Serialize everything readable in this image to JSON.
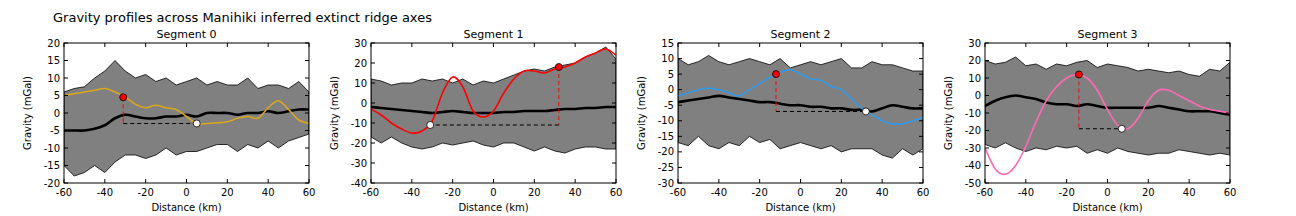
{
  "title": "Gravity profiles across Manihiki inferred extinct ridge axes",
  "chart_data": [
    {
      "type": "line",
      "title": "Segment 0",
      "x_label": "Distance (km)",
      "y_label": "Gravity (mGal)",
      "xlim": [
        -60,
        60
      ],
      "xticks": [
        -60,
        -40,
        -20,
        0,
        20,
        40,
        60
      ],
      "ylim": [
        -20,
        20
      ],
      "yticks": [
        -20,
        -15,
        -10,
        -5,
        0,
        5,
        10,
        15,
        20
      ],
      "x": [
        -60,
        -55,
        -50,
        -45,
        -40,
        -35,
        -30,
        -25,
        -20,
        -15,
        -10,
        -5,
        0,
        5,
        10,
        15,
        20,
        25,
        30,
        35,
        40,
        45,
        50,
        55,
        60
      ],
      "series": [
        {
          "type": "band",
          "color": "#808080",
          "upper": [
            6,
            7,
            7.5,
            10,
            12,
            15,
            12,
            10,
            11,
            9,
            10,
            8,
            9,
            10,
            8,
            9,
            8,
            8,
            10,
            7,
            8,
            8,
            7,
            9,
            6
          ],
          "lower": [
            -15,
            -18,
            -17,
            -15,
            -17,
            -14,
            -12,
            -12,
            -13,
            -12,
            -10,
            -12,
            -11,
            -11,
            -10,
            -9,
            -9,
            -11,
            -9,
            -10,
            -8,
            -10,
            -8,
            -7,
            -6
          ]
        },
        {
          "type": "line",
          "color": "#000000",
          "values": [
            -5,
            -5,
            -5,
            -4.5,
            -3.5,
            -1.5,
            -0.5,
            -1,
            -1.5,
            -1.5,
            -1,
            -1,
            -0.5,
            -1,
            0,
            0,
            0,
            -0.5,
            0,
            0,
            0.5,
            0,
            0.5,
            1,
            1
          ]
        },
        {
          "type": "line",
          "color": "#daa520",
          "values": [
            5,
            5.5,
            6,
            6.5,
            7,
            6,
            4.5,
            2.5,
            1.5,
            2.2,
            1.5,
            1,
            -1,
            -3,
            -3,
            -2.8,
            -2.5,
            -1.5,
            -1,
            -1.5,
            1.5,
            3.5,
            1,
            -2,
            -3
          ]
        }
      ],
      "peak": {
        "x": -31,
        "y": 4.5,
        "color": "#ff0000"
      },
      "trough": {
        "x": 5,
        "y": -3,
        "color": "#ffffff"
      }
    },
    {
      "type": "line",
      "title": "Segment 1",
      "x_label": "Distance (km)",
      "y_label": "Gravity (mGal)",
      "xlim": [
        -60,
        60
      ],
      "xticks": [
        -60,
        -40,
        -20,
        0,
        20,
        40,
        60
      ],
      "ylim": [
        -40,
        30
      ],
      "yticks": [
        -40,
        -30,
        -20,
        -10,
        0,
        10,
        20,
        30
      ],
      "x": [
        -60,
        -55,
        -50,
        -45,
        -40,
        -35,
        -30,
        -25,
        -20,
        -15,
        -10,
        -5,
        0,
        5,
        10,
        15,
        20,
        25,
        30,
        35,
        40,
        45,
        50,
        55,
        60
      ],
      "series": [
        {
          "type": "band",
          "color": "#808080",
          "upper": [
            12,
            11,
            9,
            10,
            10,
            12,
            11,
            12,
            10,
            12,
            9,
            11,
            10,
            12,
            14,
            16,
            17,
            16,
            18,
            19,
            20,
            23,
            25,
            28,
            22
          ],
          "lower": [
            -17,
            -20,
            -17,
            -20,
            -22,
            -23,
            -22,
            -20,
            -21,
            -20,
            -19,
            -21,
            -22,
            -20,
            -20,
            -22,
            -24,
            -22,
            -24,
            -25,
            -23,
            -22,
            -22,
            -23,
            -23
          ]
        },
        {
          "type": "line",
          "color": "#000000",
          "values": [
            -2,
            -2.5,
            -3,
            -3.5,
            -4,
            -4.5,
            -5,
            -4.5,
            -4,
            -4.5,
            -5,
            -5,
            -5,
            -4.5,
            -4.5,
            -4,
            -4,
            -4,
            -3.5,
            -3,
            -3,
            -2.5,
            -2.5,
            -2,
            -2
          ]
        },
        {
          "type": "line",
          "color": "#ff0000",
          "values": [
            -3,
            -6,
            -10,
            -13,
            -15,
            -14,
            -9,
            5,
            13,
            8,
            -4,
            -7,
            -4,
            5,
            12,
            16,
            16,
            15,
            17,
            18,
            20,
            23,
            25,
            27,
            24
          ]
        }
      ],
      "peak": {
        "x": 32,
        "y": 18,
        "color": "#ff0000"
      },
      "trough": {
        "x": -31,
        "y": -11,
        "color": "#ffffff"
      }
    },
    {
      "type": "line",
      "title": "Segment 2",
      "x_label": "Distance (km)",
      "y_label": "Gravity (mGal)",
      "xlim": [
        -60,
        60
      ],
      "xticks": [
        -60,
        -40,
        -20,
        0,
        20,
        40,
        60
      ],
      "ylim": [
        -30,
        15
      ],
      "yticks": [
        -30,
        -25,
        -20,
        -15,
        -10,
        -5,
        0,
        5,
        10,
        15
      ],
      "x": [
        -60,
        -55,
        -50,
        -45,
        -40,
        -35,
        -30,
        -25,
        -20,
        -15,
        -10,
        -5,
        0,
        5,
        10,
        15,
        20,
        25,
        30,
        35,
        40,
        45,
        50,
        55,
        60
      ],
      "series": [
        {
          "type": "band",
          "color": "#808080",
          "upper": [
            10,
            8,
            9,
            11,
            9,
            8,
            9,
            10,
            9,
            8,
            10,
            7,
            8,
            9,
            8,
            9,
            10,
            7,
            7,
            9,
            8,
            8,
            7,
            6,
            6
          ],
          "lower": [
            -17,
            -18,
            -15,
            -18,
            -19,
            -17,
            -18,
            -15,
            -17,
            -16,
            -19,
            -18,
            -17,
            -18,
            -19,
            -18,
            -20,
            -19,
            -19,
            -19,
            -21,
            -22,
            -19,
            -21,
            -19
          ]
        },
        {
          "type": "line",
          "color": "#000000",
          "values": [
            -4,
            -3.5,
            -3,
            -2.5,
            -2,
            -2.5,
            -3,
            -3.5,
            -4,
            -4,
            -4.5,
            -5,
            -5,
            -5.5,
            -5.5,
            -6,
            -6,
            -6.5,
            -6.5,
            -7,
            -6,
            -5,
            -5.5,
            -6,
            -6
          ]
        },
        {
          "type": "line",
          "color": "#3399e6",
          "values": [
            -2,
            -1,
            0,
            0.5,
            0,
            -1,
            -2,
            0,
            2,
            4,
            5.5,
            6.5,
            5,
            3.5,
            3,
            1,
            0,
            -3,
            -6,
            -8,
            -10,
            -11,
            -11,
            -10,
            -9
          ]
        }
      ],
      "peak": {
        "x": -12,
        "y": 5,
        "color": "#ff0000"
      },
      "trough": {
        "x": 32,
        "y": -7,
        "color": "#ffffff"
      }
    },
    {
      "type": "line",
      "title": "Segment 3",
      "x_label": "Distance (km)",
      "y_label": "Gravity (mGal)",
      "xlim": [
        -60,
        60
      ],
      "xticks": [
        -60,
        -40,
        -20,
        0,
        20,
        40,
        60
      ],
      "ylim": [
        -50,
        30
      ],
      "yticks": [
        -50,
        -40,
        -30,
        -20,
        -10,
        0,
        10,
        20,
        30
      ],
      "x": [
        -60,
        -55,
        -50,
        -45,
        -40,
        -35,
        -30,
        -25,
        -20,
        -15,
        -10,
        -5,
        0,
        5,
        10,
        15,
        20,
        25,
        30,
        35,
        40,
        45,
        50,
        55,
        60
      ],
      "series": [
        {
          "type": "band",
          "color": "#808080",
          "upper": [
            20,
            18,
            19,
            22,
            17,
            18,
            15,
            18,
            17,
            19,
            20,
            16,
            18,
            17,
            16,
            14,
            15,
            14,
            13,
            14,
            12,
            11,
            15,
            14,
            19
          ],
          "lower": [
            -28,
            -30,
            -27,
            -30,
            -32,
            -30,
            -31,
            -29,
            -30,
            -29,
            -33,
            -31,
            -33,
            -30,
            -32,
            -33,
            -34,
            -33,
            -33,
            -31,
            -32,
            -33,
            -34,
            -33,
            -34
          ]
        },
        {
          "type": "line",
          "color": "#000000",
          "values": [
            -6,
            -3,
            -1,
            0,
            -1,
            -2,
            -4,
            -5,
            -5,
            -6,
            -5,
            -6,
            -7,
            -7,
            -7,
            -7,
            -7,
            -6,
            -7,
            -8,
            -9,
            -9,
            -9,
            -10,
            -11
          ]
        },
        {
          "type": "line",
          "color": "#ff69b4",
          "values": [
            -30,
            -42,
            -45,
            -40,
            -29,
            -15,
            -3,
            5,
            10,
            12,
            10,
            3,
            -8,
            -17,
            -19,
            -13,
            -3,
            3,
            3,
            0,
            -3,
            -6,
            -8,
            -9,
            -10
          ]
        }
      ],
      "peak": {
        "x": -14,
        "y": 12,
        "color": "#ff0000"
      },
      "trough": {
        "x": 7,
        "y": -19,
        "color": "#ffffff"
      }
    }
  ]
}
